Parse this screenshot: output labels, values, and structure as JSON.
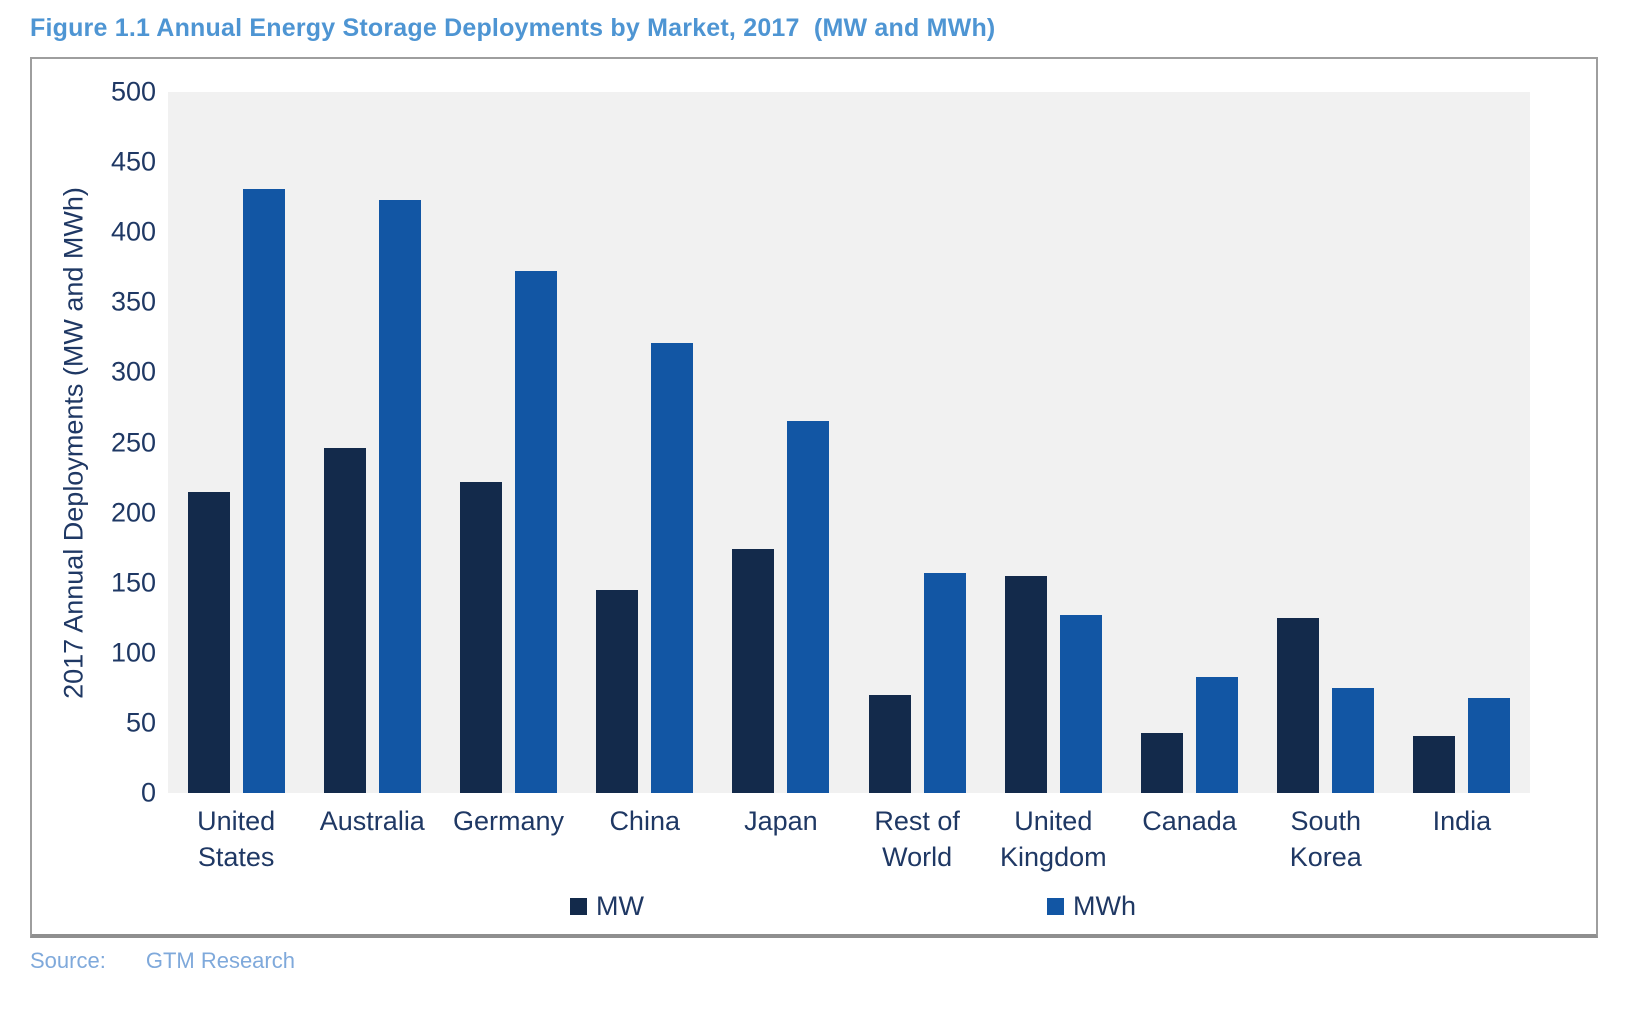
{
  "title": "Figure 1.1 Annual Energy Storage Deployments by Market, 2017  (MW and MWh)",
  "source": {
    "label": "Source:",
    "value": "GTM Research"
  },
  "colors": {
    "mw": "#132a4b",
    "mwh": "#1256a4",
    "title_text": "#4e95d3",
    "axis_text": "#1f3864",
    "plot_bg": "#f1f1f1",
    "frame_border": "#9e9e9e",
    "source_text": "#7fa9db"
  },
  "chart_data": {
    "type": "bar",
    "title": "Figure 1.1 Annual Energy Storage Deployments by Market, 2017 (MW and MWh)",
    "categories": [
      "United States",
      "Australia",
      "Germany",
      "China",
      "Japan",
      "Rest of World",
      "United Kingdom",
      "Canada",
      "South Korea",
      "India"
    ],
    "series": [
      {
        "name": "MW",
        "color_key": "mw",
        "values": [
          215,
          246,
          222,
          145,
          174,
          70,
          155,
          43,
          125,
          41
        ]
      },
      {
        "name": "MWh",
        "color_key": "mwh",
        "values": [
          431,
          423,
          372,
          321,
          265,
          157,
          127,
          83,
          75,
          68
        ]
      }
    ],
    "xlabel": "",
    "ylabel": "2017 Annual Deployments (MW and MWh)",
    "ylim": [
      0,
      500
    ],
    "yticks": [
      500,
      450,
      400,
      350,
      300,
      250,
      200,
      150,
      100,
      50,
      0
    ],
    "grid": false,
    "legend_position": "bottom"
  }
}
